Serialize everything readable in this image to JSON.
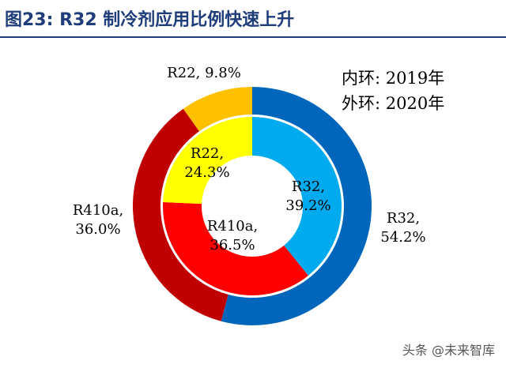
{
  "header": {
    "title": "图23: R32 制冷剂应用比例快速上升"
  },
  "legend": {
    "inner": "内环: 2019年",
    "outer": "外环: 2020年"
  },
  "watermark": "头条 @未来智库",
  "chart_data": {
    "type": "pie",
    "title": "图23: R32 制冷剂应用比例快速上升",
    "rings": [
      {
        "ring": "inner",
        "label": "2019年",
        "slices": [
          {
            "name": "R32",
            "value": 39.2,
            "label": "R32,\n39.2%",
            "color": "#00aaee"
          },
          {
            "name": "R410a",
            "value": 36.5,
            "label": "R410a,\n36.5%",
            "color": "#ff0000"
          },
          {
            "name": "R22",
            "value": 24.3,
            "label": "R22,\n24.3%",
            "color": "#ffff00"
          }
        ]
      },
      {
        "ring": "outer",
        "label": "2020年",
        "slices": [
          {
            "name": "R32",
            "value": 54.2,
            "label": "R32,\n54.2%",
            "color": "#0066bb"
          },
          {
            "name": "R410a",
            "value": 36.0,
            "label": "R410a,\n36.0%",
            "color": "#c00000"
          },
          {
            "name": "R22",
            "value": 9.8,
            "label": "R22, 9.8%",
            "color": "#ffc000"
          }
        ]
      }
    ]
  }
}
